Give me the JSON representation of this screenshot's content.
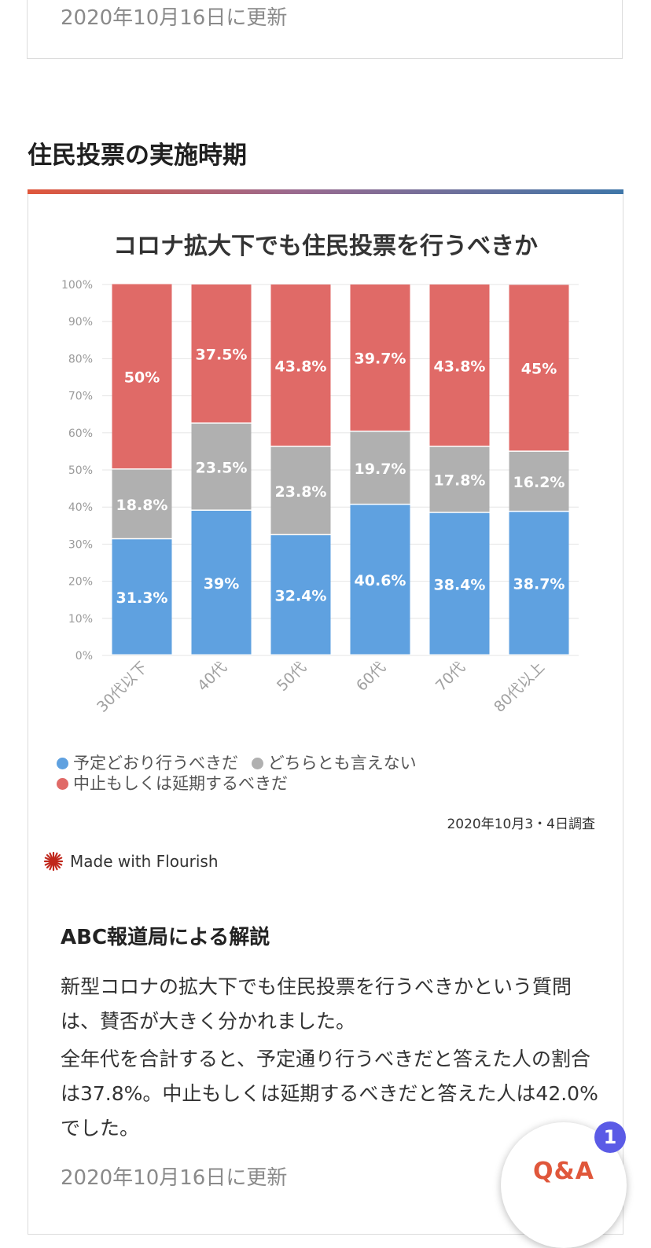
{
  "top_card": {
    "updated": "2020年10月16日に更新"
  },
  "section": {
    "title": "住民投票の実施時期"
  },
  "chart_data": {
    "type": "bar",
    "stacked": true,
    "title": "コロナ拡大下でも住民投票を行うべきか",
    "categories": [
      "30代以下",
      "40代",
      "50代",
      "60代",
      "70代",
      "80代以上"
    ],
    "series": [
      {
        "name": "予定どおり行うべきだ",
        "color": "#5fa1e0",
        "values": [
          31.3,
          39,
          32.4,
          40.6,
          38.4,
          38.7
        ],
        "labels": [
          "31.3%",
          "39%",
          "32.4%",
          "40.6%",
          "38.4%",
          "38.7%"
        ]
      },
      {
        "name": "どちらとも言えない",
        "color": "#b0b0b0",
        "values": [
          18.8,
          23.5,
          23.8,
          19.7,
          17.8,
          16.2
        ],
        "labels": [
          "18.8%",
          "23.5%",
          "23.8%",
          "19.7%",
          "17.8%",
          "16.2%"
        ]
      },
      {
        "name": "中止もしくは延期するべきだ",
        "color": "#e06a67",
        "values": [
          50,
          37.5,
          43.8,
          39.7,
          43.8,
          45
        ],
        "labels": [
          "50%",
          "37.5%",
          "43.8%",
          "39.7%",
          "43.8%",
          "45%"
        ]
      }
    ],
    "ylim": [
      0,
      100
    ],
    "yticks": [
      "0%",
      "10%",
      "20%",
      "30%",
      "40%",
      "50%",
      "60%",
      "70%",
      "80%",
      "90%",
      "100%"
    ],
    "grid": true,
    "legend_position": "bottom-left",
    "note": "2020年10月3・4日調査"
  },
  "flourish": {
    "label": "Made with Flourish"
  },
  "explanation": {
    "title": "ABC報道局による解説",
    "paragraphs": [
      "新型コロナの拡大下でも住民投票を行うべきかという質問は、賛否が大きく分かれました。",
      "全年代を合計すると、予定通り行うべきだと答えた人の割合は37.8%。中止もしくは延期するべきだと答えた人は42.0%でした。"
    ],
    "updated": "2020年10月16日に更新"
  },
  "qa": {
    "label": "Q&A",
    "badge": "1"
  }
}
